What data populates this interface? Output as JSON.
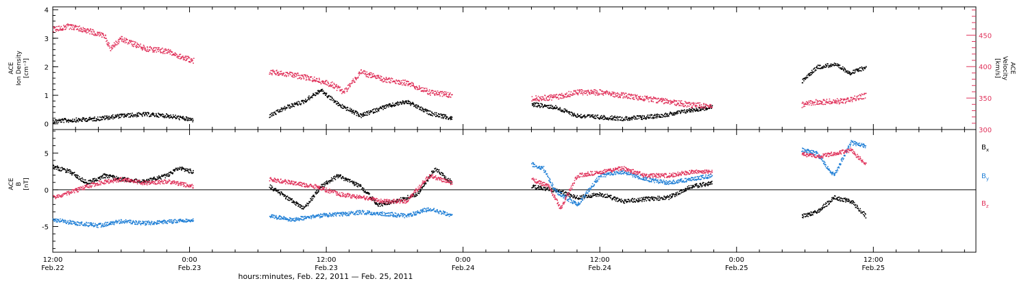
{
  "chart_data": {
    "type": "scatter",
    "x_axis": {
      "xlim": [
        0,
        81
      ],
      "ticks": [
        {
          "x": 0,
          "time": "12:00",
          "date": "Feb.22"
        },
        {
          "x": 12,
          "time": "0:00",
          "date": "Feb.23"
        },
        {
          "x": 24,
          "time": "12:00",
          "date": "Feb.23"
        },
        {
          "x": 36,
          "time": "0:00",
          "date": "Feb.24"
        },
        {
          "x": 48,
          "time": "12:00",
          "date": "Feb.24"
        },
        {
          "x": 60,
          "time": "0:00",
          "date": "Feb.25"
        },
        {
          "x": 72,
          "time": "12:00",
          "date": "Feb.25"
        }
      ],
      "title": "hours:minutes, Feb. 22, 2011 — Feb. 25, 2011"
    },
    "panels": [
      {
        "name": "ion-density-velocity",
        "left_axis": {
          "label_lines": [
            "ACE",
            "Ion Density",
            "[cm⁻³]"
          ],
          "ylim": [
            -0.2,
            4.1
          ],
          "ticks": [
            "0",
            "1",
            "2",
            "3",
            "4"
          ],
          "tick_values": [
            0,
            1,
            2,
            3,
            4
          ]
        },
        "right_axis": {
          "label_lines": [
            "ACE",
            "Velocity",
            "[km/s]"
          ],
          "ylim": [
            300,
            495
          ],
          "ticks": [
            "300",
            "350",
            "400",
            "450"
          ],
          "tick_values": [
            300,
            350,
            400,
            450
          ],
          "color": "#e0315a"
        },
        "series": [
          {
            "key": "density",
            "color": "#000000",
            "axis": "left",
            "segments": [
              {
                "x": [
                  0,
                  2,
                  4,
                  6,
                  8,
                  10,
                  12.3
                ],
                "y": [
                  0.12,
                  0.15,
                  0.2,
                  0.3,
                  0.35,
                  0.3,
                  0.15
                ]
              },
              {
                "x": [
                  19,
                  20.5,
                  22,
                  23.5,
                  25,
                  27,
                  29,
                  31,
                  33,
                  35
                ],
                "y": [
                  0.3,
                  0.6,
                  0.8,
                  1.2,
                  0.7,
                  0.3,
                  0.6,
                  0.8,
                  0.4,
                  0.2
                ]
              },
              {
                "x": [
                  42,
                  44,
                  46,
                  48,
                  50,
                  52,
                  54,
                  56,
                  57.8
                ],
                "y": [
                  0.7,
                  0.6,
                  0.3,
                  0.25,
                  0.2,
                  0.25,
                  0.35,
                  0.5,
                  0.6
                ]
              },
              {
                "x": [
                  65.7,
                  67,
                  68.5,
                  70,
                  71.3
                ],
                "y": [
                  1.5,
                  2.0,
                  2.1,
                  1.8,
                  2.0
                ]
              }
            ]
          },
          {
            "key": "velocity",
            "color": "#e0315a",
            "axis": "right",
            "segments": [
              {
                "x": [
                  0,
                  1.5,
                  3,
                  4.5,
                  5,
                  6,
                  8,
                  10,
                  11.5,
                  12.3
                ],
                "y": [
                  460,
                  465,
                  458,
                  450,
                  430,
                  445,
                  430,
                  425,
                  415,
                  410
                ]
              },
              {
                "x": [
                  19,
                  21,
                  23,
                  24.5,
                  25.5,
                  27,
                  29,
                  31,
                  33,
                  35
                ],
                "y": [
                  392,
                  388,
                  380,
                  372,
                  360,
                  392,
                  380,
                  375,
                  360,
                  355
                ]
              },
              {
                "x": [
                  42,
                  44,
                  46,
                  48,
                  50,
                  52,
                  54,
                  56,
                  57.8
                ],
                "y": [
                  350,
                  352,
                  360,
                  360,
                  355,
                  350,
                  345,
                  340,
                  338
                ]
              },
              {
                "x": [
                  65.7,
                  67,
                  68.5,
                  70,
                  71.3
                ],
                "y": [
                  340,
                  345,
                  345,
                  348,
                  355
                ]
              }
            ]
          }
        ]
      },
      {
        "name": "imf-components",
        "left_axis": {
          "label_lines": [
            "ACE",
            "B",
            "[nT]"
          ],
          "ylim": [
            -8.5,
            8.2
          ],
          "ticks": [
            "-5",
            "0",
            "5"
          ],
          "tick_values": [
            -5,
            0,
            5
          ]
        },
        "legend": [
          {
            "label": "B",
            "sub": "x",
            "color": "#000000"
          },
          {
            "label": "B",
            "sub": "y",
            "color": "#1f7fd6"
          },
          {
            "label": "B",
            "sub": "z",
            "color": "#e0315a"
          }
        ],
        "series": [
          {
            "key": "Bx",
            "color": "#000000",
            "segments": [
              {
                "x": [
                  0,
                  1.5,
                  3,
                  4.5,
                  6,
                  8,
                  10,
                  11,
                  12.3
                ],
                "y": [
                  3.2,
                  2.5,
                  1.0,
                  2.0,
                  1.5,
                  1.2,
                  2.0,
                  3.0,
                  2.5
                ]
              },
              {
                "x": [
                  19,
                  20.5,
                  22,
                  23.5,
                  25,
                  27,
                  28.5,
                  30,
                  32,
                  33.5,
                  35
                ],
                "y": [
                  0.5,
                  -1.0,
                  -2.5,
                  0.5,
                  2.0,
                  0.5,
                  -2.0,
                  -1.5,
                  -0.5,
                  3.0,
                  1.0
                ]
              },
              {
                "x": [
                  42,
                  44,
                  46,
                  48,
                  50,
                  52,
                  54,
                  56,
                  57.8
                ],
                "y": [
                  0.5,
                  0,
                  -1.0,
                  -0.5,
                  -1.5,
                  -1.2,
                  -1.0,
                  0.5,
                  1.0
                ]
              },
              {
                "x": [
                  65.7,
                  67,
                  68.5,
                  70,
                  71.3
                ],
                "y": [
                  -3.5,
                  -3.0,
                  -1.0,
                  -1.5,
                  -3.5
                ]
              }
            ]
          },
          {
            "key": "By",
            "color": "#1f7fd6",
            "segments": [
              {
                "x": [
                  0,
                  2,
                  4,
                  6,
                  8,
                  10,
                  12.3
                ],
                "y": [
                  -4.0,
                  -4.5,
                  -4.8,
                  -4.2,
                  -4.5,
                  -4.3,
                  -4.0
                ]
              },
              {
                "x": [
                  19,
                  21,
                  23,
                  25,
                  27,
                  29,
                  31,
                  33,
                  35
                ],
                "y": [
                  -3.5,
                  -4.0,
                  -3.5,
                  -3.3,
                  -3.0,
                  -3.2,
                  -3.5,
                  -2.5,
                  -3.5
                ]
              },
              {
                "x": [
                  42,
                  43,
                  44,
                  46,
                  48,
                  50,
                  52,
                  54,
                  56,
                  57.8
                ],
                "y": [
                  3.5,
                  3.0,
                  0,
                  -2.0,
                  2.0,
                  2.5,
                  1.5,
                  1.0,
                  1.5,
                  2.0
                ]
              },
              {
                "x": [
                  65.7,
                  67,
                  68.5,
                  70,
                  71.3
                ],
                "y": [
                  5.5,
                  5.0,
                  2.0,
                  6.5,
                  6.0
                ]
              }
            ]
          },
          {
            "key": "Bz",
            "color": "#e0315a",
            "segments": [
              {
                "x": [
                  0,
                  2,
                  4,
                  6,
                  8,
                  10,
                  12.3
                ],
                "y": [
                  -1.0,
                  0,
                  1.0,
                  1.5,
                  1.0,
                  1.2,
                  0.5
                ]
              },
              {
                "x": [
                  19,
                  21,
                  23,
                  25,
                  27,
                  29,
                  31,
                  33,
                  35
                ],
                "y": [
                  1.5,
                  1.0,
                  0.5,
                  -0.5,
                  -1.0,
                  -1.5,
                  -1.5,
                  2.0,
                  1.0
                ]
              },
              {
                "x": [
                  42,
                  43.5,
                  44.5,
                  46,
                  48,
                  50,
                  52,
                  54,
                  56,
                  57.8
                ],
                "y": [
                  1.5,
                  0.5,
                  -2.5,
                  2.0,
                  2.5,
                  3.0,
                  2.0,
                  2.0,
                  2.5,
                  2.5
                ]
              },
              {
                "x": [
                  65.7,
                  67,
                  68.5,
                  70,
                  71.3
                ],
                "y": [
                  5.0,
                  4.5,
                  5.0,
                  5.5,
                  3.5
                ]
              }
            ]
          }
        ]
      }
    ]
  }
}
